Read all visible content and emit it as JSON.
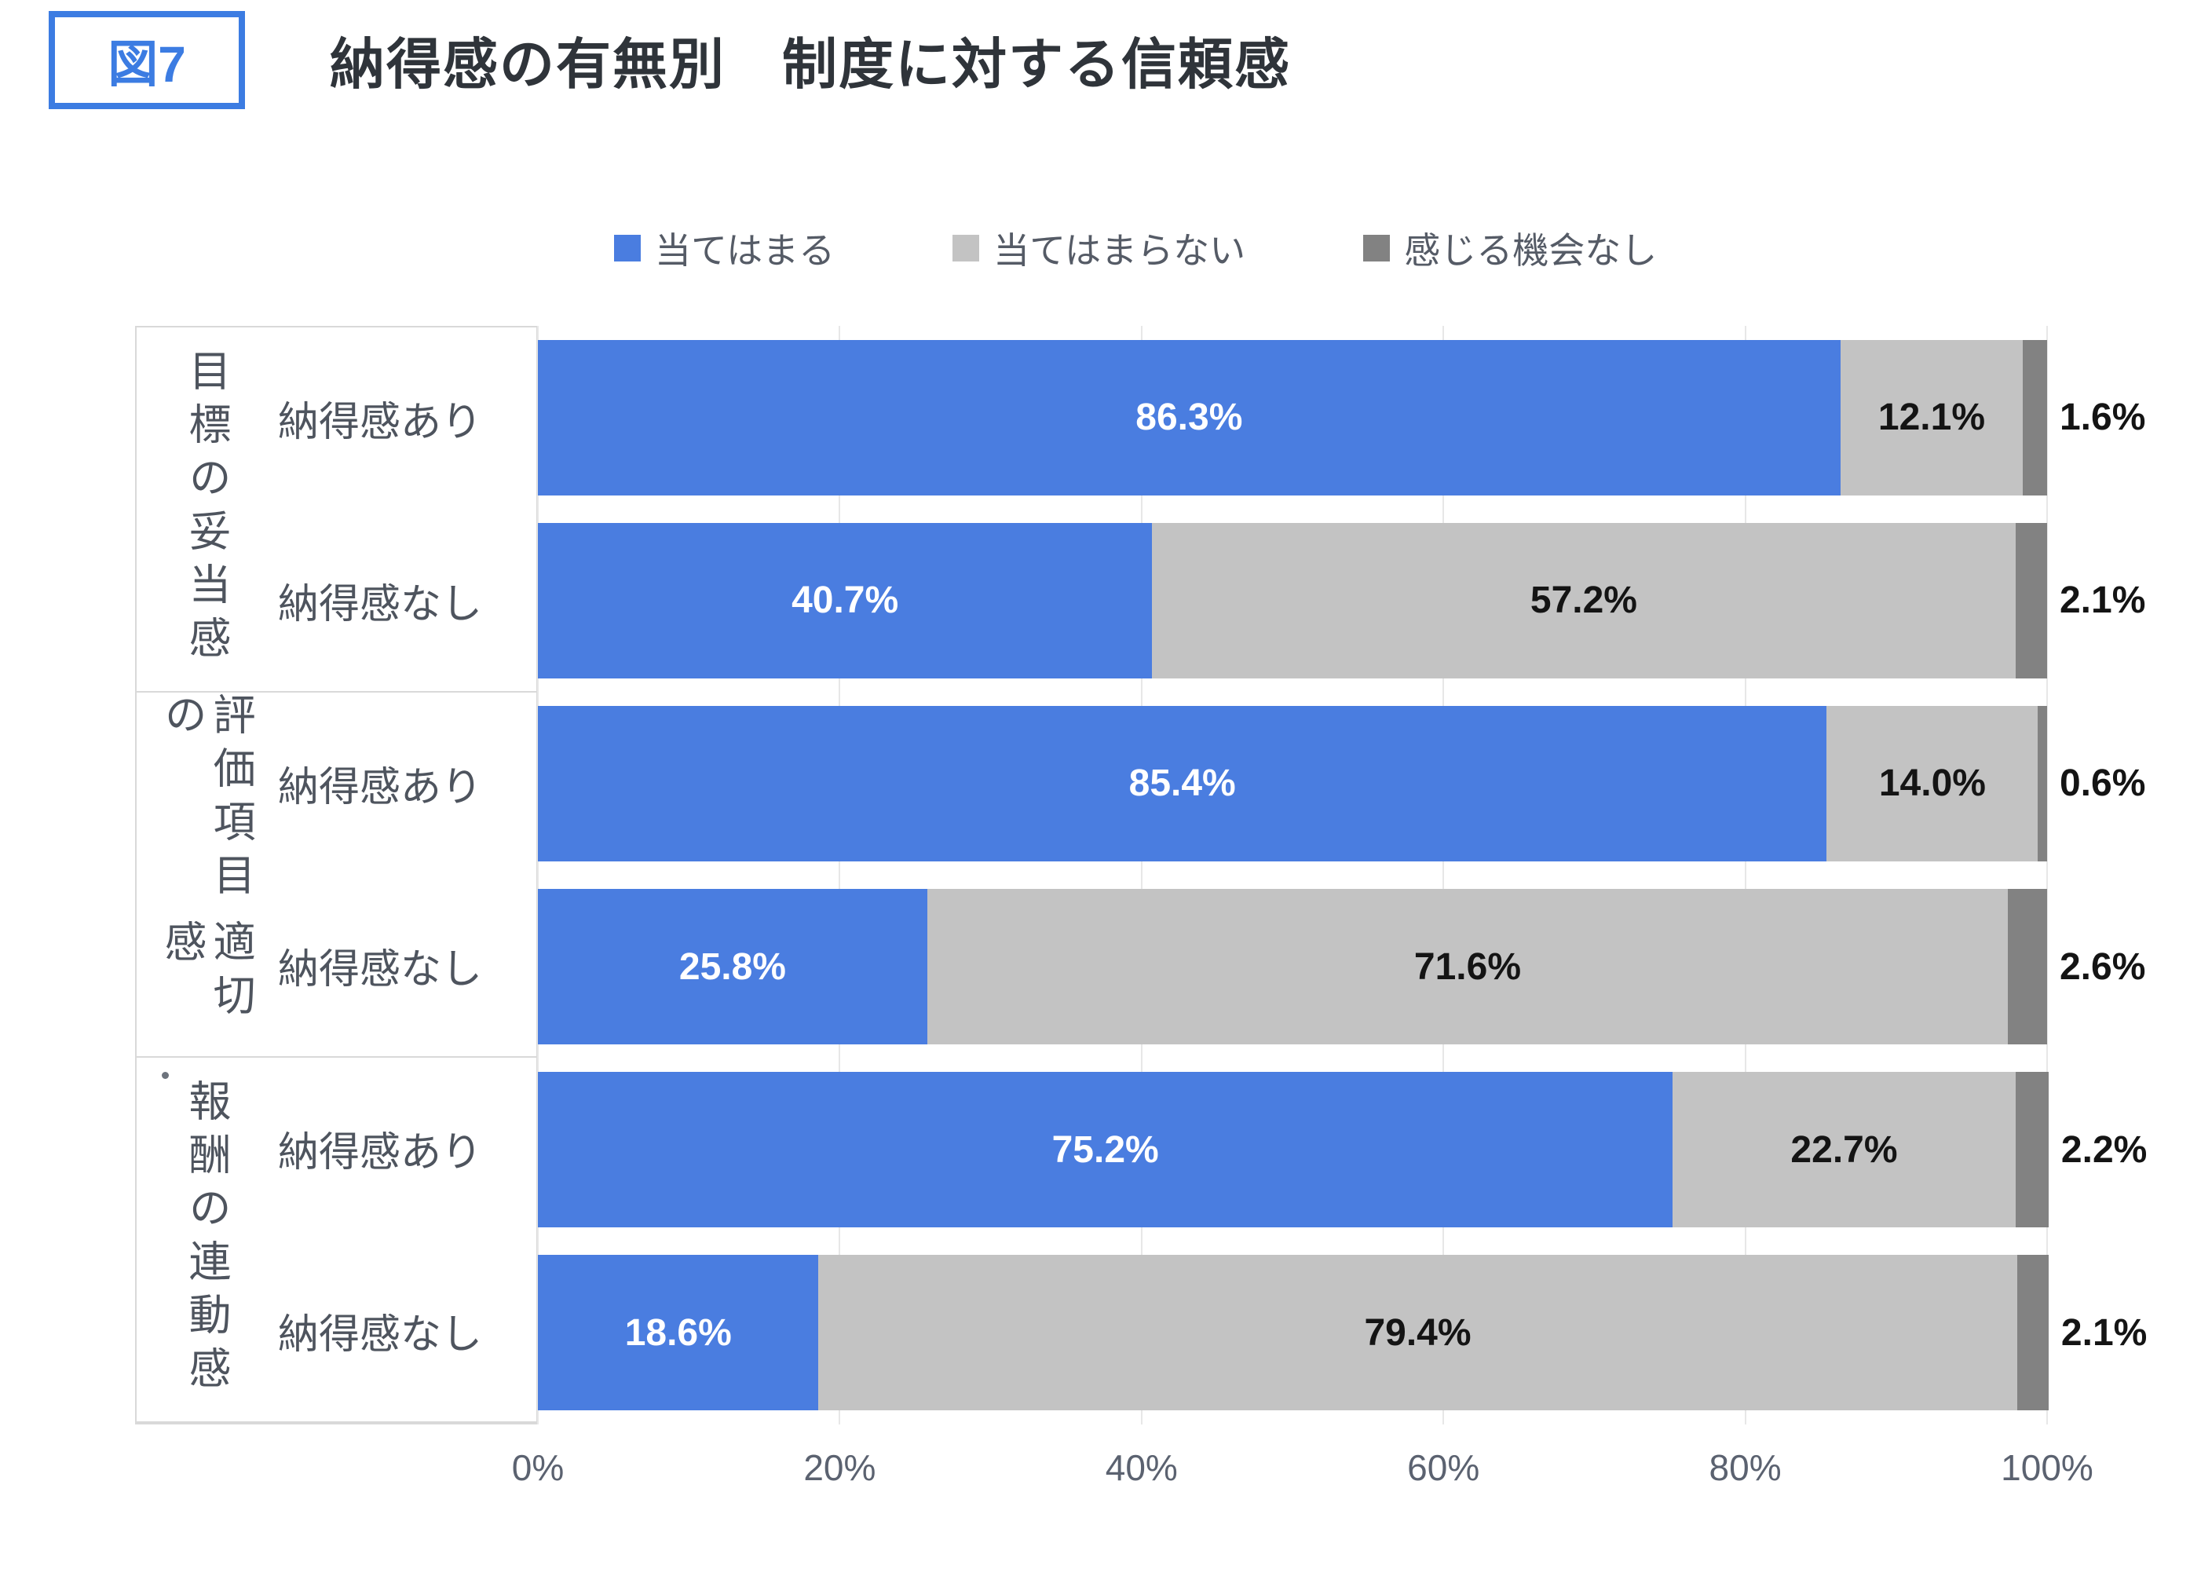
{
  "header": {
    "figure_label": "図7",
    "title": "納得感の有無別　制度に対する信頼感"
  },
  "colors": {
    "accent_blue": "#3c7ce2",
    "bar_blue": "#4a7de0",
    "bar_light_gray": "#c3c3c3",
    "bar_dark_gray": "#828282",
    "text_dark": "#2f343a",
    "text_slate": "#4e545e",
    "axis_text": "#5b6270",
    "grid_line": "#e7e7e7",
    "panel_border": "#d9d9d9"
  },
  "chart_data": {
    "type": "bar",
    "orientation": "horizontal",
    "stacked": true,
    "legend_position": "top",
    "grid": true,
    "xlim": [
      0,
      100
    ],
    "value_suffix": "%",
    "x_ticks": [
      "0%",
      "20%",
      "40%",
      "60%",
      "80%",
      "100%"
    ],
    "series": [
      {
        "name": "当てはまる",
        "color": "#4a7de0",
        "values": [
          86.3,
          40.7,
          85.4,
          25.8,
          75.2,
          18.6
        ]
      },
      {
        "name": "当てはまらない",
        "color": "#c3c3c3",
        "values": [
          12.1,
          57.2,
          14.0,
          71.6,
          22.7,
          79.4
        ]
      },
      {
        "name": "感じる機会なし",
        "color": "#828282",
        "values": [
          1.6,
          2.1,
          0.6,
          2.6,
          2.2,
          2.1
        ]
      }
    ],
    "row_labels": [
      "納得感あり",
      "納得感なし",
      "納得感あり",
      "納得感なし",
      "納得感あり",
      "納得感なし"
    ],
    "groups": [
      {
        "label": "目標の妥当感",
        "label_columns": [
          "目標の妥当感"
        ],
        "rows": [
          "納得感あり",
          "納得感なし"
        ],
        "overflow_dot": false
      },
      {
        "label": "評価項目の適切感",
        "label_columns": [
          "評価項目の",
          "適切感"
        ],
        "rows": [
          "納得感あり",
          "納得感なし"
        ],
        "overflow_dot": true
      },
      {
        "label": "報酬の連動感",
        "label_columns": [
          "報酬の連動感"
        ],
        "rows": [
          "納得感あり",
          "納得感なし"
        ],
        "overflow_dot": false
      }
    ]
  }
}
